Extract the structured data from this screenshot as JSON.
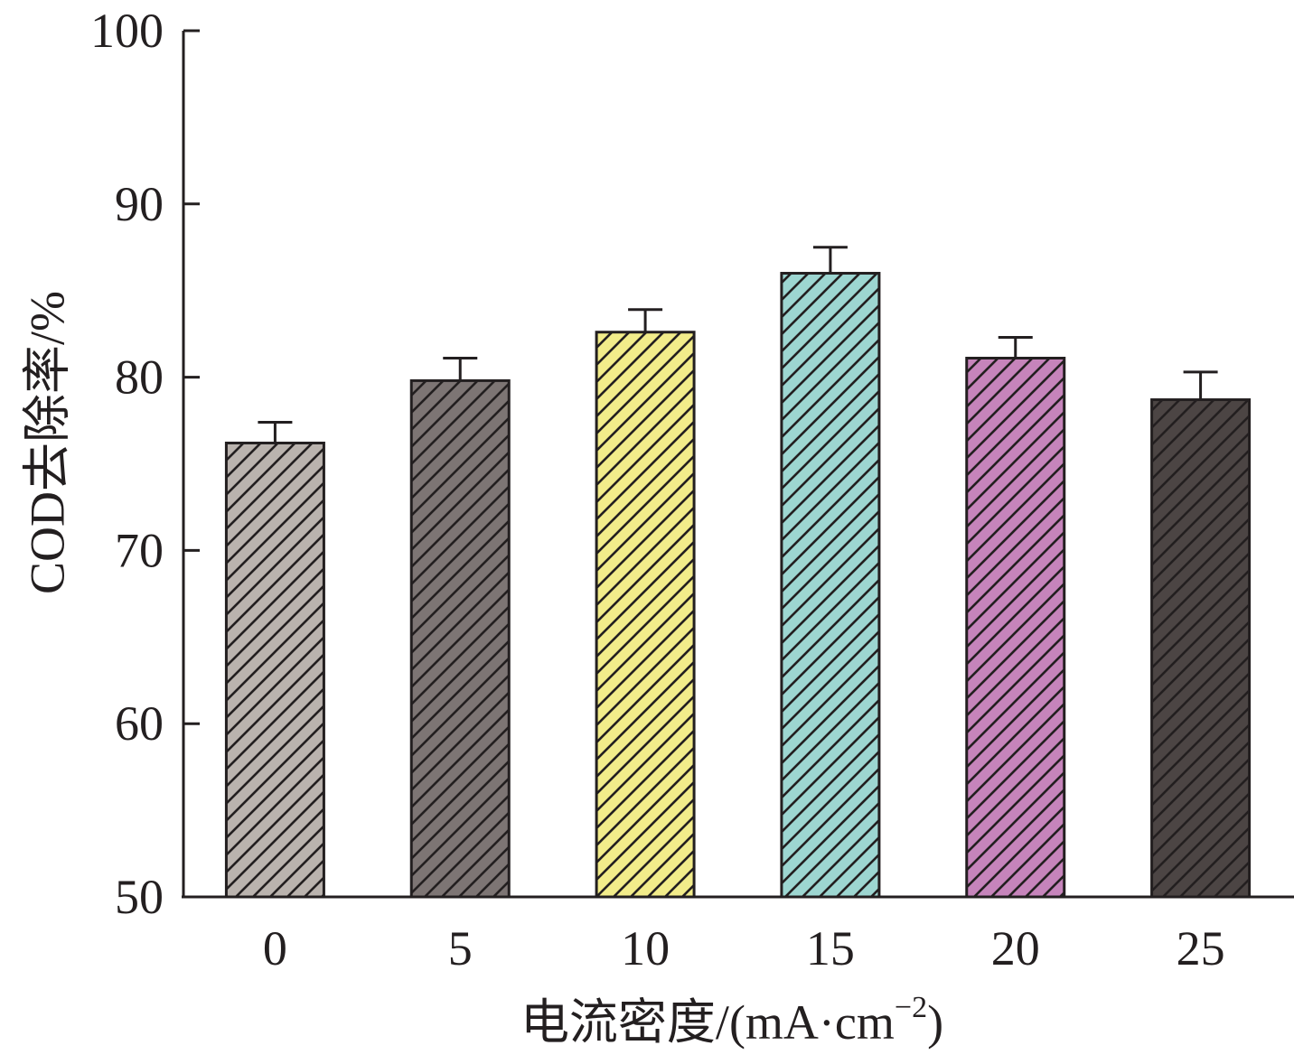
{
  "chart_data": {
    "type": "bar",
    "title": "",
    "xlabel": "电流密度/(mA·cm",
    "xlabel_superscript": "−2",
    "xlabel_suffix": ")",
    "ylabel": "COD去除率/%",
    "categories": [
      "0",
      "5",
      "10",
      "15",
      "20",
      "25"
    ],
    "values": [
      76.2,
      79.8,
      82.6,
      86.0,
      81.1,
      78.7
    ],
    "errors": [
      1.2,
      1.3,
      1.3,
      1.5,
      1.2,
      1.6
    ],
    "ylim": [
      50,
      100
    ],
    "yticks": [
      "50",
      "60",
      "70",
      "80",
      "90",
      "100"
    ],
    "grid": false,
    "legend": "none",
    "bar_colors": [
      "#bab3ae",
      "#7d7574",
      "#f2ec8a",
      "#9dd6d1",
      "#c684bb",
      "#4c4544"
    ],
    "hatch": "diagonal",
    "axis_color": "#231f20"
  }
}
